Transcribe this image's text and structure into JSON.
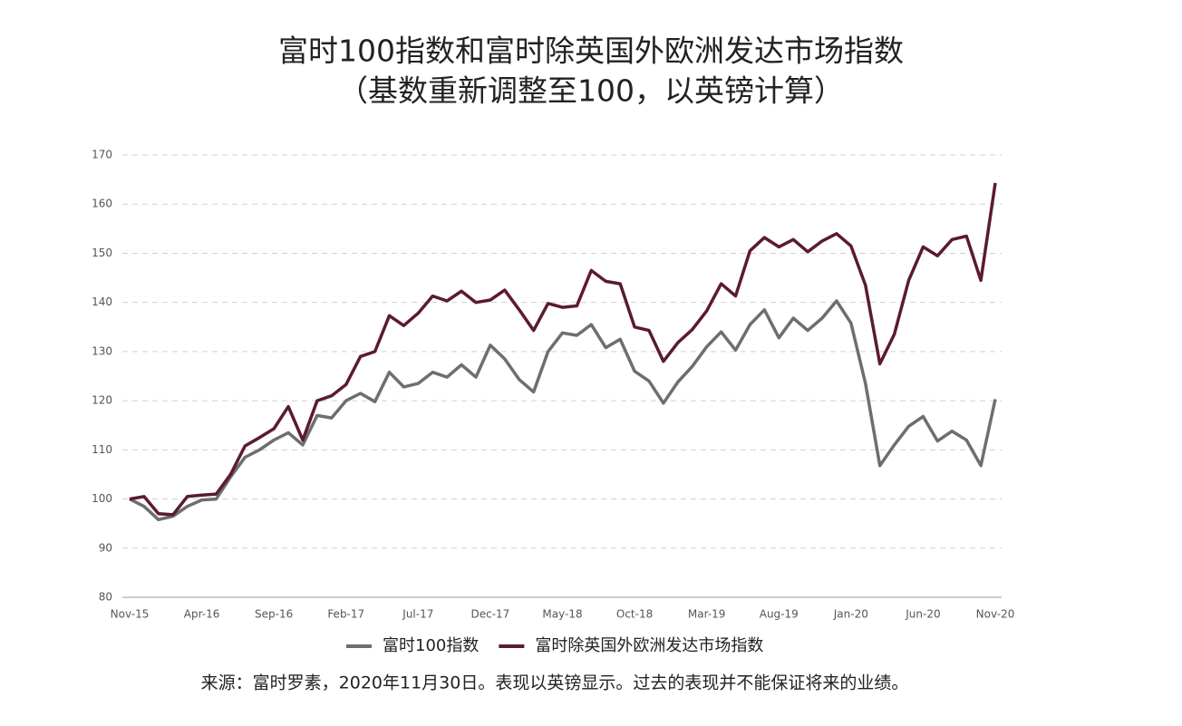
{
  "chart_data": {
    "type": "line",
    "title": "富时100指数和富时除英国外欧洲发达市场指数",
    "subtitle": "（基数重新调整至100，以英镑计算）",
    "footnote": "来源：富时罗素，2020年11月30日。表现以英镑显示。过去的表现并不能保证将来的业绩。",
    "categories": [
      "Nov-15",
      null,
      null,
      null,
      null,
      "Apr-16",
      null,
      null,
      null,
      null,
      "Sep-16",
      null,
      null,
      null,
      null,
      "Feb-17",
      null,
      null,
      null,
      null,
      "Jul-17",
      null,
      null,
      null,
      null,
      "Dec-17",
      null,
      null,
      null,
      null,
      "May-18",
      null,
      null,
      null,
      null,
      "Oct-18",
      null,
      null,
      null,
      null,
      "Mar-19",
      null,
      null,
      null,
      null,
      "Aug-19",
      null,
      null,
      null,
      null,
      "Jan-20",
      null,
      null,
      null,
      null,
      "Jun-20",
      null,
      null,
      null,
      null,
      "Nov-20"
    ],
    "series": [
      {
        "name": "富时100指数",
        "color": "#6d6e70",
        "values": [
          100,
          98.5,
          95.8,
          96.5,
          98.5,
          99.8,
          100,
          104.5,
          108.5,
          110,
          112,
          113.5,
          111,
          117,
          116.5,
          120,
          121.5,
          119.8,
          125.8,
          122.8,
          123.5,
          125.8,
          124.8,
          127.3,
          124.8,
          131.3,
          128.5,
          124.3,
          121.8,
          130,
          133.8,
          133.3,
          135.5,
          130.8,
          132.5,
          126,
          124,
          119.5,
          123.8,
          127,
          131,
          134,
          130.3,
          135.5,
          138.5,
          132.8,
          136.8,
          134.3,
          136.8,
          140.3,
          135.8,
          123.5,
          106.8,
          111,
          114.8,
          116.8,
          111.8,
          113.8,
          112,
          106.8,
          120.3
        ]
      },
      {
        "name": "富时除英国外欧洲发达市场指数",
        "color": "#5b1a33",
        "values": [
          100,
          100.5,
          97,
          96.8,
          100.5,
          100.8,
          101,
          105,
          110.8,
          112.5,
          114.3,
          118.8,
          112,
          120,
          121,
          123.3,
          129,
          130,
          137.3,
          135.3,
          137.8,
          141.3,
          140.3,
          142.3,
          140,
          140.5,
          142.5,
          138.5,
          134.3,
          139.8,
          139,
          139.3,
          146.5,
          144.3,
          143.8,
          135,
          134.3,
          128,
          131.8,
          134.5,
          138.3,
          143.8,
          141.3,
          150.5,
          153.2,
          151.3,
          152.8,
          150.3,
          152.5,
          154,
          151.5,
          143.5,
          127.5,
          133.5,
          144.5,
          151.3,
          149.5,
          152.8,
          153.5,
          144.5,
          164.3
        ]
      }
    ],
    "ylim": [
      80,
      170
    ],
    "yticks": [
      80,
      90,
      100,
      110,
      120,
      130,
      140,
      150,
      160,
      170
    ],
    "grid": true
  }
}
